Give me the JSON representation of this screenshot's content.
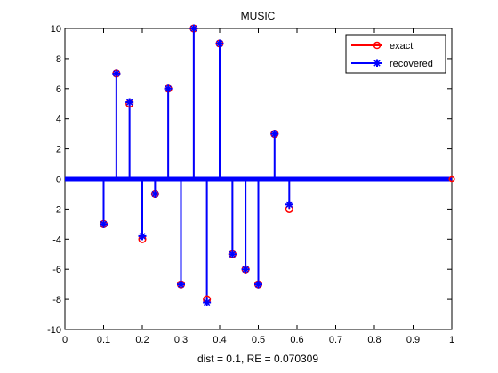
{
  "chart_data": {
    "type": "stem",
    "title": "MUSIC",
    "xlabel": "dist = 0.1, RE = 0.070309",
    "ylabel": "",
    "xlim": [
      0,
      1
    ],
    "ylim": [
      -10,
      10
    ],
    "xticks": [
      "0",
      "0.1",
      "0.2",
      "0.3",
      "0.4",
      "0.5",
      "0.6",
      "0.7",
      "0.8",
      "0.9",
      "1"
    ],
    "yticks": [
      "-10",
      "-8",
      "-6",
      "-4",
      "-2",
      "0",
      "2",
      "4",
      "6",
      "8",
      "10"
    ],
    "grid": false,
    "legend_position": "top-right",
    "series": [
      {
        "name": "exact",
        "color": "#ff0000",
        "marker": "circle",
        "x": [
          0.1,
          0.133,
          0.167,
          0.2,
          0.233,
          0.267,
          0.3,
          0.333,
          0.367,
          0.4,
          0.433,
          0.467,
          0.5,
          0.542,
          0.58
        ],
        "y": [
          -3,
          7,
          5,
          -4,
          -1,
          6,
          -7,
          10,
          -8,
          9,
          -5,
          -6,
          -7,
          3,
          -2
        ]
      },
      {
        "name": "recovered",
        "color": "#0000ff",
        "marker": "star",
        "x": [
          0.1,
          0.133,
          0.167,
          0.2,
          0.233,
          0.267,
          0.3,
          0.333,
          0.367,
          0.4,
          0.433,
          0.467,
          0.5,
          0.542,
          0.58
        ],
        "y": [
          -3,
          7,
          5.1,
          -3.8,
          -1,
          6,
          -7,
          10,
          -8.2,
          9,
          -5,
          -6,
          -7,
          3,
          -1.7
        ]
      }
    ]
  }
}
